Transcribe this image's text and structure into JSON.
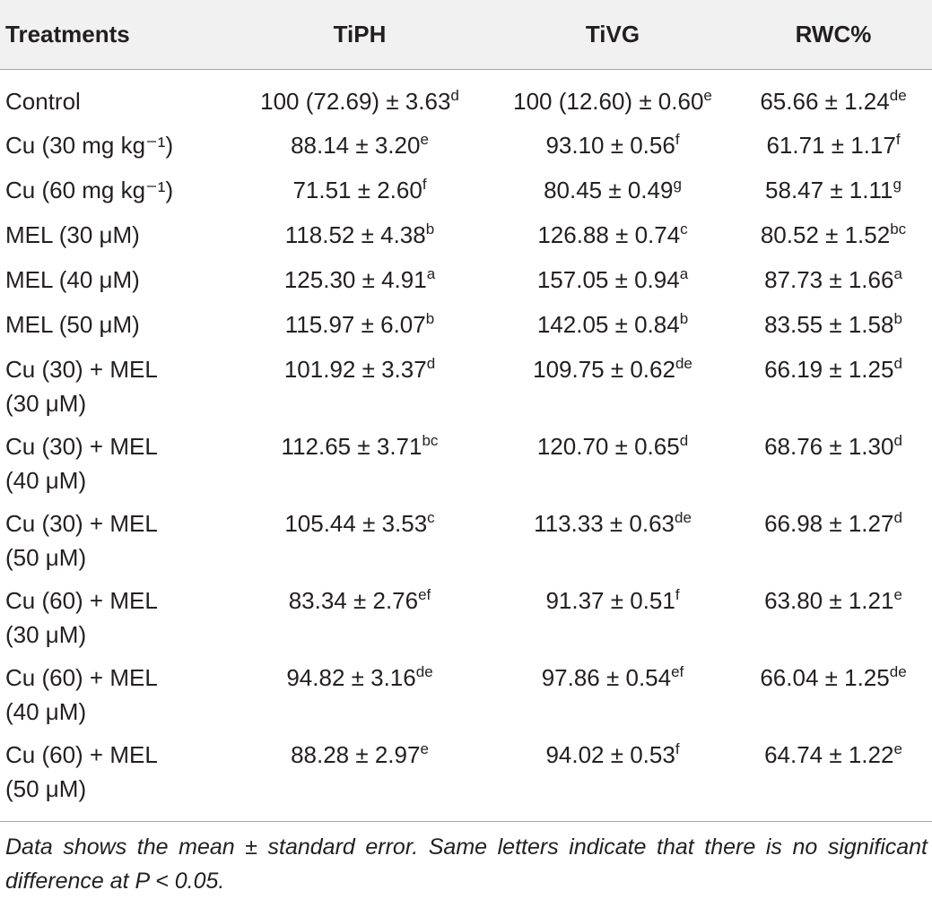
{
  "table": {
    "headers": [
      "Treatments",
      "TiPH",
      "TiVG",
      "RWC%"
    ],
    "rows": [
      {
        "treatment": [
          "Control"
        ],
        "cells": [
          {
            "v": "100 (72.69) ± 3.63",
            "s": "d"
          },
          {
            "v": "100 (12.60) ± 0.60",
            "s": "e"
          },
          {
            "v": "65.66 ± 1.24",
            "s": "de"
          }
        ]
      },
      {
        "treatment": [
          "Cu (30 mg kg⁻¹)"
        ],
        "cells": [
          {
            "v": "88.14 ± 3.20",
            "s": "e"
          },
          {
            "v": "93.10 ± 0.56",
            "s": "f"
          },
          {
            "v": "61.71 ± 1.17",
            "s": "f"
          }
        ]
      },
      {
        "treatment": [
          "Cu (60 mg kg⁻¹)"
        ],
        "cells": [
          {
            "v": "71.51 ± 2.60",
            "s": "f"
          },
          {
            "v": "80.45 ± 0.49",
            "s": "g"
          },
          {
            "v": "58.47 ± 1.11",
            "s": "g"
          }
        ]
      },
      {
        "treatment": [
          "MEL (30 μM)"
        ],
        "cells": [
          {
            "v": "118.52 ± 4.38",
            "s": "b"
          },
          {
            "v": "126.88 ± 0.74",
            "s": "c"
          },
          {
            "v": "80.52 ± 1.52",
            "s": "bc"
          }
        ]
      },
      {
        "treatment": [
          "MEL (40 μM)"
        ],
        "cells": [
          {
            "v": "125.30 ± 4.91",
            "s": "a"
          },
          {
            "v": "157.05 ± 0.94",
            "s": "a"
          },
          {
            "v": "87.73 ± 1.66",
            "s": "a"
          }
        ]
      },
      {
        "treatment": [
          "MEL (50 μM)"
        ],
        "cells": [
          {
            "v": "115.97 ± 6.07",
            "s": "b"
          },
          {
            "v": "142.05 ± 0.84",
            "s": "b"
          },
          {
            "v": "83.55 ± 1.58",
            "s": "b"
          }
        ]
      },
      {
        "treatment": [
          "Cu (30)  + MEL",
          "(30 μM)"
        ],
        "cells": [
          {
            "v": "101.92 ± 3.37",
            "s": "d"
          },
          {
            "v": "109.75 ± 0.62",
            "s": "de"
          },
          {
            "v": "66.19 ± 1.25",
            "s": "d"
          }
        ]
      },
      {
        "treatment": [
          "Cu (30)  + MEL",
          "(40 μM)"
        ],
        "cells": [
          {
            "v": "112.65 ± 3.71",
            "s": "bc"
          },
          {
            "v": "120.70 ± 0.65",
            "s": "d"
          },
          {
            "v": "68.76 ± 1.30",
            "s": "d"
          }
        ]
      },
      {
        "treatment": [
          "Cu (30)  + MEL",
          "(50 μM)"
        ],
        "cells": [
          {
            "v": "105.44 ± 3.53",
            "s": "c"
          },
          {
            "v": "113.33 ± 0.63",
            "s": "de"
          },
          {
            "v": "66.98 ± 1.27",
            "s": "d"
          }
        ]
      },
      {
        "treatment": [
          "Cu (60)  + MEL",
          "(30 μM)"
        ],
        "cells": [
          {
            "v": "83.34 ± 2.76",
            "s": "ef"
          },
          {
            "v": "91.37 ± 0.51",
            "s": "f"
          },
          {
            "v": "63.80 ± 1.21",
            "s": "e"
          }
        ]
      },
      {
        "treatment": [
          "Cu (60)  + MEL",
          "(40 μM)"
        ],
        "cells": [
          {
            "v": "94.82 ± 3.16",
            "s": "de"
          },
          {
            "v": "97.86 ± 0.54",
            "s": "ef"
          },
          {
            "v": "66.04 ± 1.25",
            "s": "de"
          }
        ]
      },
      {
        "treatment": [
          "Cu (60)  + MEL",
          "(50 μM)"
        ],
        "cells": [
          {
            "v": "88.28 ± 2.97",
            "s": "e"
          },
          {
            "v": "94.02 ± 0.53",
            "s": "f"
          },
          {
            "v": "64.74 ± 1.22",
            "s": "e"
          }
        ]
      }
    ]
  },
  "footnote": "Data shows the mean ± standard error. Same letters indicate that there is no significant difference at P < 0.05."
}
